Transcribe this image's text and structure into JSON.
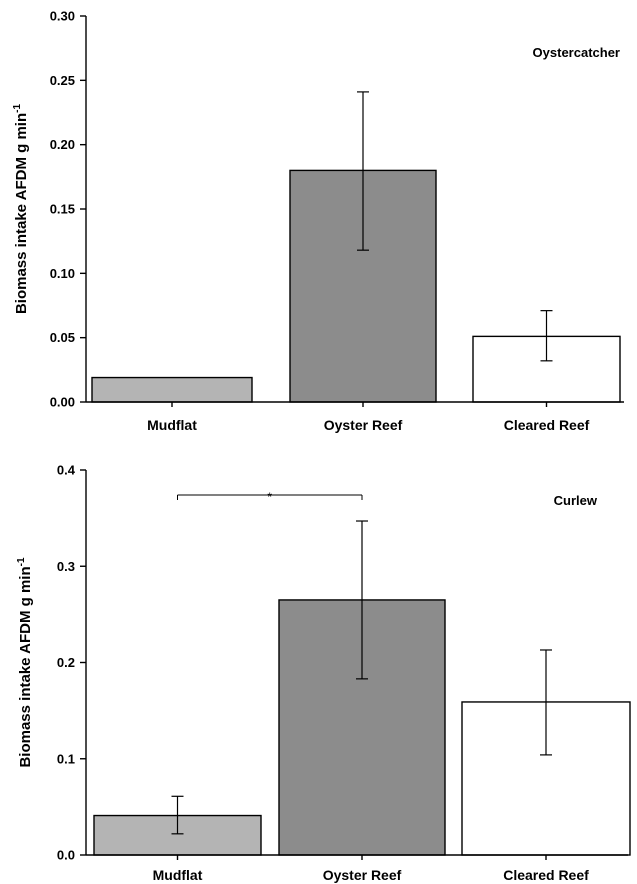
{
  "chart_data": [
    {
      "type": "bar",
      "annotation": "Oystercatcher",
      "categories": [
        "Mudflat",
        "Oyster Reef",
        "Cleared Reef"
      ],
      "values": [
        0.019,
        0.18,
        0.051
      ],
      "error_low": [
        null,
        0.118,
        0.032
      ],
      "error_high": [
        null,
        0.241,
        0.071
      ],
      "bar_colors": [
        "#b4b4b4",
        "#8c8c8c",
        "#ffffff"
      ],
      "ylabel": "Biomass intake AFDM g min",
      "ylabel_sup": "-1",
      "ylim": [
        0,
        0.3
      ],
      "yticks": [
        "0.00",
        "0.05",
        "0.10",
        "0.15",
        "0.20",
        "0.25",
        "0.30"
      ],
      "grid": false
    },
    {
      "type": "bar",
      "annotation": "Curlew",
      "categories": [
        "Mudflat",
        "Oyster Reef",
        "Cleared Reef"
      ],
      "values": [
        0.041,
        0.265,
        0.159
      ],
      "error_low": [
        0.022,
        0.183,
        0.104
      ],
      "error_high": [
        0.061,
        0.347,
        0.213
      ],
      "bar_colors": [
        "#b4b4b4",
        "#8c8c8c",
        "#ffffff"
      ],
      "ylabel": "Biomass intake AFDM g min",
      "ylabel_sup": "-1",
      "ylim": [
        0,
        0.4
      ],
      "yticks": [
        "0.0",
        "0.1",
        "0.2",
        "0.3",
        "0.4"
      ],
      "grid": false,
      "significance": {
        "from": 0,
        "to": 1,
        "label": "*"
      }
    }
  ]
}
